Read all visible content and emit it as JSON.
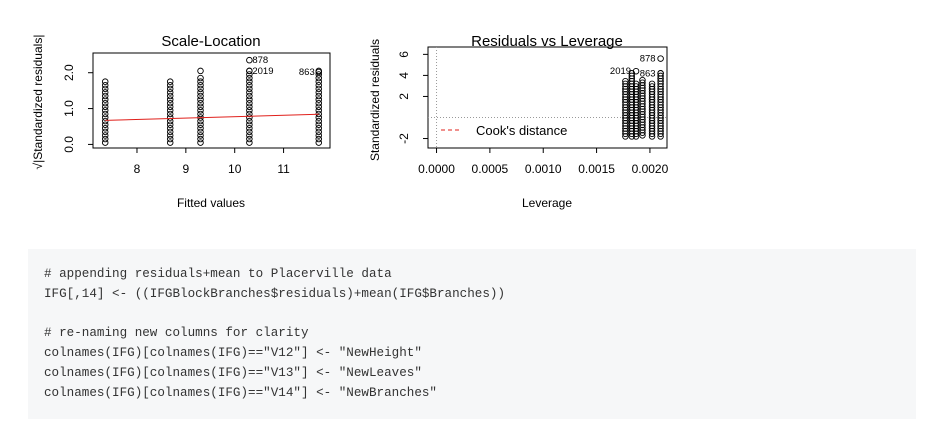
{
  "chart_data": [
    {
      "type": "scatter",
      "title": "Scale-Location",
      "xlabel": "Fitted values",
      "ylabel": "√|Standardized residuals|",
      "xlim": [
        7.1,
        11.95
      ],
      "ylim": [
        -0.1,
        2.55
      ],
      "xticks": [
        "8",
        "9",
        "10",
        "11"
      ],
      "yticks": [
        "0.0",
        "1.0",
        "2.0"
      ],
      "x_groups": [
        7.35,
        8.68,
        9.3,
        10.3,
        11.72
      ],
      "group_max": [
        1.75,
        1.8,
        1.85,
        2.05,
        2.05
      ],
      "extra_points": [
        {
          "x": 9.3,
          "y": 2.05
        }
      ],
      "labeled_points": [
        {
          "x": 10.3,
          "y": 2.35,
          "label": "878"
        },
        {
          "x": 10.3,
          "y": 2.05,
          "label": "2019"
        },
        {
          "x": 11.72,
          "y": 2.02,
          "label": "863"
        }
      ],
      "smoother": {
        "color": "#e0201b",
        "x": [
          7.35,
          11.72
        ],
        "y": [
          0.67,
          0.84
        ]
      }
    },
    {
      "type": "scatter",
      "title": "Residuals vs Leverage",
      "xlabel": "Leverage",
      "ylabel": "Standardized residuals",
      "xlim": [
        -8e-05,
        0.00216
      ],
      "ylim": [
        -2.9,
        6.7
      ],
      "xticks": [
        "0.0000",
        "0.0005",
        "0.0010",
        "0.0015",
        "0.0020"
      ],
      "yticks": [
        "-2",
        "2",
        "4",
        "6"
      ],
      "x_groups": [
        0.00177,
        0.00183,
        0.00187,
        0.00193,
        0.00202,
        0.0021
      ],
      "group_min": [
        -1.8,
        -1.8,
        -1.8,
        -1.7,
        -1.8,
        -1.8
      ],
      "group_max": [
        3.6,
        4.3,
        3.3,
        3.6,
        3.2,
        4.2
      ],
      "labeled_points": [
        {
          "x": 0.0021,
          "y": 5.6,
          "label": "878"
        },
        {
          "x": 0.00187,
          "y": 4.4,
          "label": "2019"
        },
        {
          "x": 0.0021,
          "y": 4.2,
          "label": "863"
        }
      ],
      "legend": {
        "label": "Cook's distance",
        "position": "bottom-left",
        "color": "#e0201b"
      }
    }
  ],
  "code": {
    "lines": [
      "# appending residuals+mean to Placerville data",
      "IFG[,14] <- ((IFGBlockBranches$residuals)+mean(IFG$Branches))",
      "",
      "# re-naming new columns for clarity",
      "colnames(IFG)[colnames(IFG)==\"V12\"] <- \"NewHeight\"",
      "colnames(IFG)[colnames(IFG)==\"V13\"] <- \"NewLeaves\"",
      "colnames(IFG)[colnames(IFG)==\"V14\"] <- \"NewBranches\""
    ]
  }
}
